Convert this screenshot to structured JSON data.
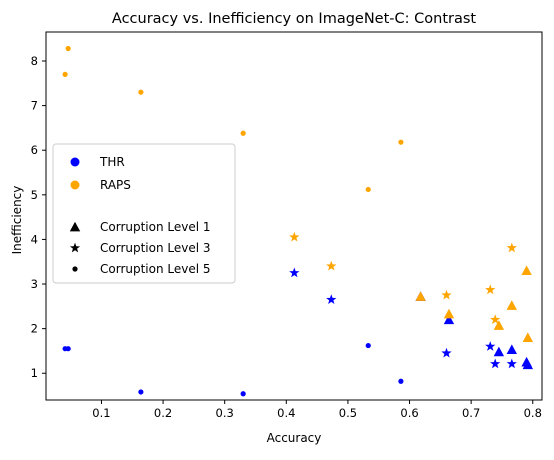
{
  "chart_data": {
    "type": "scatter",
    "title": "Accuracy vs. Inefficiency on ImageNet-C: Contrast",
    "xlabel": "Accuracy",
    "ylabel": "Inefficiency",
    "xlim": [
      0.01,
      0.815
    ],
    "ylim": [
      0.4,
      8.65
    ],
    "xticks": [
      "0.1",
      "0.2",
      "0.3",
      "0.4",
      "0.5",
      "0.6",
      "0.7",
      "0.8"
    ],
    "yticks": [
      "1",
      "2",
      "3",
      "4",
      "5",
      "6",
      "7",
      "8"
    ],
    "grid": false,
    "legend_position": "center-left",
    "legend": {
      "methods": [
        {
          "label": "THR",
          "color": "#0000ff"
        },
        {
          "label": "RAPS",
          "color": "#ffa500"
        }
      ],
      "levels": [
        {
          "label": "Corruption Level 1",
          "marker": "triangle"
        },
        {
          "label": "Corruption Level 3",
          "marker": "star"
        },
        {
          "label": "Corruption Level 5",
          "marker": "dot"
        }
      ]
    },
    "series": [
      {
        "method": "THR",
        "level": 1,
        "color": "#0000ff",
        "marker": "triangle",
        "points": [
          [
            0.618,
            2.72
          ],
          [
            0.664,
            2.2
          ],
          [
            0.745,
            1.48
          ],
          [
            0.766,
            1.53
          ],
          [
            0.79,
            1.25
          ],
          [
            0.792,
            1.19
          ]
        ]
      },
      {
        "method": "THR",
        "level": 3,
        "color": "#0000ff",
        "marker": "star",
        "points": [
          [
            0.413,
            3.25
          ],
          [
            0.473,
            2.65
          ],
          [
            0.66,
            1.45
          ],
          [
            0.731,
            1.6
          ],
          [
            0.739,
            1.21
          ],
          [
            0.766,
            1.21
          ]
        ]
      },
      {
        "method": "THR",
        "level": 5,
        "color": "#0000ff",
        "marker": "dot",
        "points": [
          [
            0.041,
            1.55
          ],
          [
            0.046,
            1.55
          ],
          [
            0.164,
            0.58
          ],
          [
            0.33,
            0.54
          ],
          [
            0.533,
            1.62
          ],
          [
            0.586,
            0.82
          ]
        ]
      },
      {
        "method": "RAPS",
        "level": 1,
        "color": "#ffa500",
        "marker": "triangle",
        "points": [
          [
            0.618,
            2.72
          ],
          [
            0.664,
            2.33
          ],
          [
            0.745,
            2.07
          ],
          [
            0.766,
            2.52
          ],
          [
            0.79,
            3.3
          ],
          [
            0.792,
            1.8
          ]
        ]
      },
      {
        "method": "RAPS",
        "level": 3,
        "color": "#ffa500",
        "marker": "star",
        "points": [
          [
            0.413,
            4.05
          ],
          [
            0.473,
            3.4
          ],
          [
            0.66,
            2.75
          ],
          [
            0.731,
            2.87
          ],
          [
            0.739,
            2.2
          ],
          [
            0.766,
            3.81
          ]
        ]
      },
      {
        "method": "RAPS",
        "level": 5,
        "color": "#ffa500",
        "marker": "dot",
        "points": [
          [
            0.041,
            7.7
          ],
          [
            0.046,
            8.28
          ],
          [
            0.164,
            7.3
          ],
          [
            0.33,
            6.38
          ],
          [
            0.533,
            5.12
          ],
          [
            0.586,
            6.18
          ]
        ]
      }
    ]
  }
}
